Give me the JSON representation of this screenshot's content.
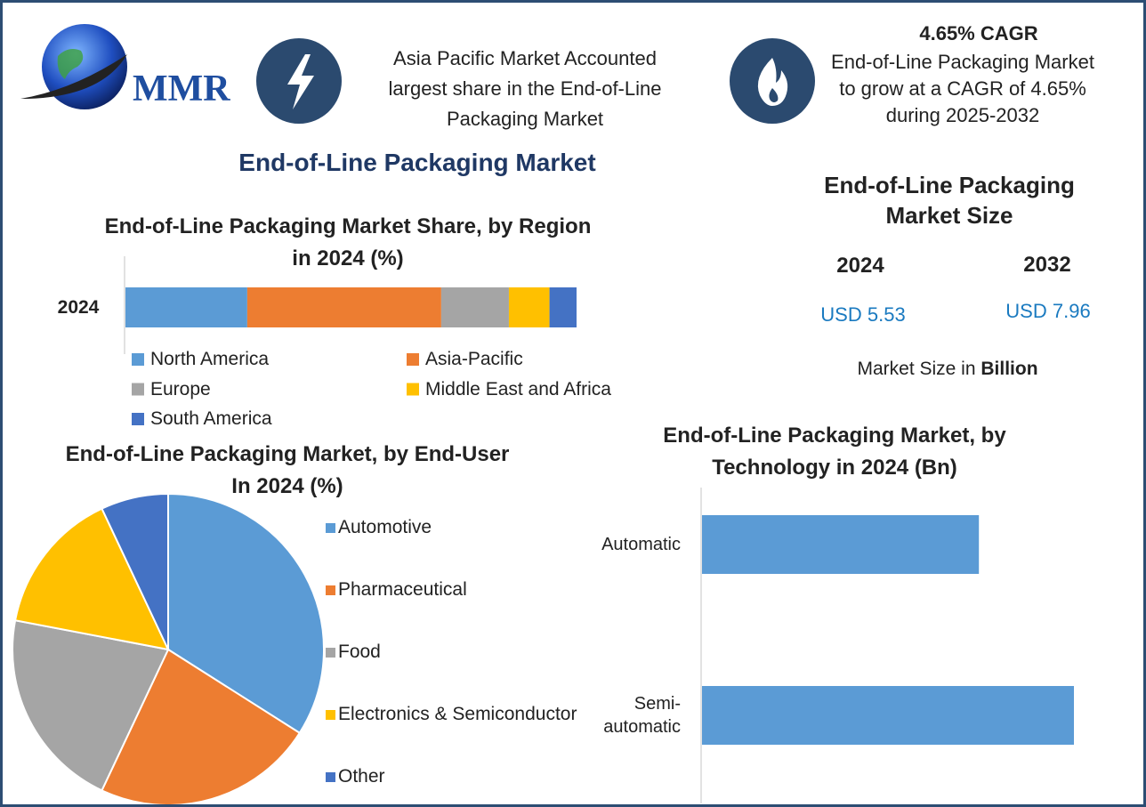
{
  "logo": "MMR",
  "highlights": [
    {
      "text": "Asia Pacific Market Accounted largest share in the End-of-Line Packaging Market"
    },
    {
      "title": "4.65% CAGR",
      "text": "End-of-Line Packaging Market to grow at a CAGR of 4.65% during 2025-2032"
    }
  ],
  "title": "End-of-Line Packaging Market",
  "market_size": {
    "title": "End-of-Line Packaging Market Size",
    "years": [
      "2024",
      "2032"
    ],
    "values": [
      "USD 5.53",
      "USD 7.96"
    ],
    "note": "Market Size in",
    "unit": "Billion"
  },
  "chart_data": [
    {
      "type": "bar",
      "orientation": "horizontal",
      "stacked": true,
      "title": "End-of-Line Packaging Market Share, by Region in 2024 (%)",
      "categories": [
        "2024"
      ],
      "series": [
        {
          "name": "North America",
          "color": "#5b9bd5",
          "values": [
            27
          ]
        },
        {
          "name": "Asia-Pacific",
          "color": "#ed7d31",
          "values": [
            43
          ]
        },
        {
          "name": "Europe",
          "color": "#a5a5a5",
          "values": [
            15
          ]
        },
        {
          "name": "Middle East and Africa",
          "color": "#ffc000",
          "values": [
            9
          ]
        },
        {
          "name": "South America",
          "color": "#4472c4",
          "values": [
            6
          ]
        }
      ]
    },
    {
      "type": "pie",
      "title": "End-of-Line Packaging Market, by End-User In 2024 (%)",
      "categories": [
        "Automotive",
        "Pharmaceutical",
        "Food",
        "Electronics & Semiconductor",
        "Other"
      ],
      "values": [
        34,
        23,
        21,
        15,
        7
      ],
      "colors": [
        "#5b9bd5",
        "#ed7d31",
        "#a5a5a5",
        "#ffc000",
        "#4472c4"
      ]
    },
    {
      "type": "bar",
      "orientation": "horizontal",
      "title": "End-of-Line Packaging Market, by Technology in 2024 (Bn)",
      "categories": [
        "Automatic",
        "Semi-automatic"
      ],
      "values": [
        2.36,
        3.17
      ],
      "color": "#5b9bd5"
    }
  ]
}
